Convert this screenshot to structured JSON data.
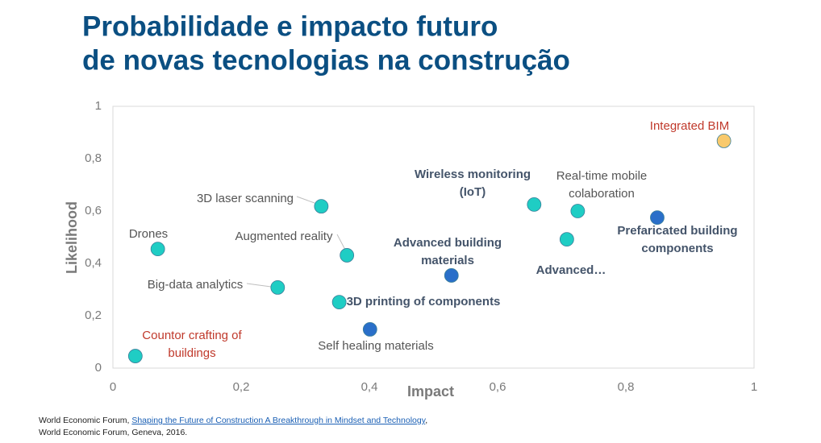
{
  "chart_data": {
    "type": "scatter",
    "title": [
      "Probabilidade e impacto futuro",
      "de novas tecnologias na construção"
    ],
    "xlabel": "Impact",
    "ylabel": "Likelihood",
    "xlim": [
      0,
      1
    ],
    "ylim": [
      0,
      1
    ],
    "xticks": [
      0,
      {
        "value": 0.2,
        "label": "0,2"
      },
      {
        "value": 0.4,
        "label": "0,4"
      },
      {
        "value": 0.6,
        "label": "0,6"
      },
      {
        "value": 0.8,
        "label": "0,8"
      },
      1
    ],
    "yticks": [
      0,
      {
        "value": 0.2,
        "label": "0,2"
      },
      {
        "value": 0.4,
        "label": "0,4"
      },
      {
        "value": 0.6,
        "label": "0,6"
      },
      {
        "value": 0.8,
        "label": "0,8"
      },
      1
    ],
    "points": [
      {
        "label": [
          "Integrated BIM"
        ],
        "x": 0.953,
        "y": 0.868,
        "color": "#f8c96c",
        "label_color": "#c0392b",
        "label_bold": false
      },
      {
        "label": [
          "Wireless monitoring",
          "(IoT)"
        ],
        "x": 0.657,
        "y": 0.625,
        "color": "#1fcdc4",
        "label_color": "#44546a",
        "label_bold": true
      },
      {
        "label": [
          "Real-time mobile",
          "colaboration"
        ],
        "x": 0.725,
        "y": 0.6,
        "color": "#1fcdc4",
        "label_color": "#555555",
        "label_bold": false
      },
      {
        "label": [
          "Prefaricated building",
          "components"
        ],
        "x": 0.849,
        "y": 0.575,
        "color": "#2a6fc9",
        "label_color": "#44546a",
        "label_bold": true
      },
      {
        "label": [
          "Advanced…"
        ],
        "x": 0.708,
        "y": 0.492,
        "color": "#1fcdc4",
        "label_color": "#44546a",
        "label_bold": true
      },
      {
        "label": [
          "3D laser scanning"
        ],
        "x": 0.325,
        "y": 0.618,
        "color": "#1fcdc4",
        "label_color": "#555555",
        "label_bold": false
      },
      {
        "label": [
          "Drones"
        ],
        "x": 0.07,
        "y": 0.455,
        "color": "#1fcdc4",
        "label_color": "#555555",
        "label_bold": false
      },
      {
        "label": [
          "Augmented reality"
        ],
        "x": 0.365,
        "y": 0.431,
        "color": "#1fcdc4",
        "label_color": "#555555",
        "label_bold": false
      },
      {
        "label": [
          "Advanced building",
          "materials"
        ],
        "x": 0.528,
        "y": 0.354,
        "color": "#2a6fc9",
        "label_color": "#44546a",
        "label_bold": true
      },
      {
        "label": [
          "Big-data analytics"
        ],
        "x": 0.257,
        "y": 0.308,
        "color": "#1fcdc4",
        "label_color": "#555555",
        "label_bold": false
      },
      {
        "label": [
          "3D printing of components"
        ],
        "x": 0.353,
        "y": 0.252,
        "color": "#1fcdc4",
        "label_color": "#44546a",
        "label_bold": true
      },
      {
        "label": [
          "Self healing materials"
        ],
        "x": 0.401,
        "y": 0.148,
        "color": "#2a6fc9",
        "label_color": "#555555",
        "label_bold": false
      },
      {
        "label": [
          "Countor crafting of",
          "buildings"
        ],
        "x": 0.035,
        "y": 0.046,
        "color": "#1fcdc4",
        "label_color": "#c0392b",
        "label_bold": false
      }
    ]
  },
  "source": {
    "prefix": "World Economic Forum, ",
    "link": "Shaping the Future of Construction A Breakthrough in Mindset and Technology",
    "suffix": ",",
    "line2": "World Economic Forum, Geneva, 2016."
  }
}
